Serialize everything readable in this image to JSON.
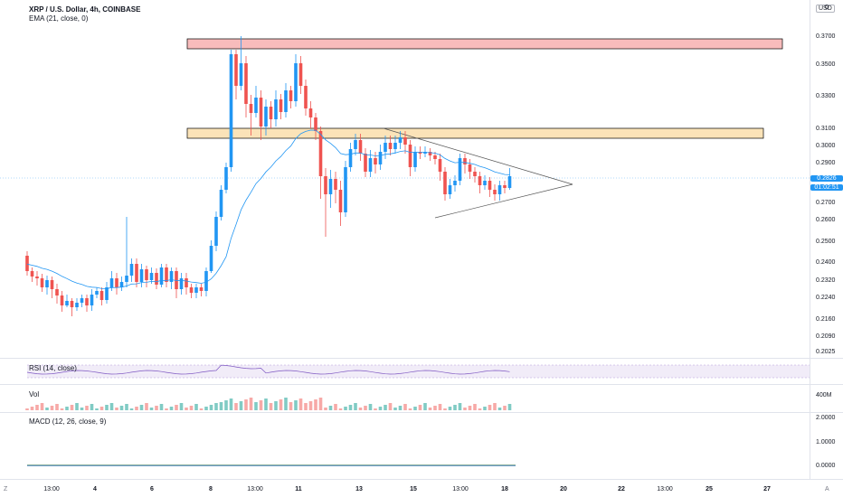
{
  "header": {
    "symbol": "XRP / U.S. Dollar, 4h, COINBASE",
    "indicator": "EMA (21, close, 0)"
  },
  "currency_badge": "USD",
  "price_axis": [
    "0.3700",
    "0.3500",
    "0.3300",
    "0.3100",
    "0.3000",
    "0.2900",
    "0.2800",
    "0.2700",
    "0.2600",
    "0.2500",
    "0.2400",
    "0.2320",
    "0.2240",
    "0.2160",
    "0.2090",
    "0.2025"
  ],
  "top_cut_label": "0",
  "current_price": {
    "value": "0.2826",
    "countdown": "01:02:51",
    "color": "#2196f3"
  },
  "rsi": {
    "label": "RSI (14, close)"
  },
  "volume": {
    "label": "Vol",
    "axis": "400M"
  },
  "macd": {
    "label": "MACD (12, 26, close, 9)",
    "axis": [
      "2.0000",
      "1.0000",
      "0.0000"
    ]
  },
  "time_axis": [
    {
      "label": "13:00",
      "bold": false
    },
    {
      "label": "4",
      "bold": true
    },
    {
      "label": "6",
      "bold": true
    },
    {
      "label": "8",
      "bold": true
    },
    {
      "label": "13:00",
      "bold": false
    },
    {
      "label": "11",
      "bold": true
    },
    {
      "label": "13",
      "bold": true
    },
    {
      "label": "15",
      "bold": true
    },
    {
      "label": "13:00",
      "bold": false
    },
    {
      "label": "18",
      "bold": true
    },
    {
      "label": "20",
      "bold": true
    },
    {
      "label": "22",
      "bold": true
    },
    {
      "label": "13:00",
      "bold": false
    },
    {
      "label": "25",
      "bold": true
    },
    {
      "label": "27",
      "bold": true
    }
  ],
  "corner_labels": {
    "left": "Z",
    "right": "A"
  },
  "colors": {
    "up": "#26a69a",
    "down": "#ef5350",
    "up_fill": "#2196f3",
    "ema": "#2196f3",
    "resistance_red": "#f8bcbc",
    "resistance_yellow": "#fbe3b8"
  }
}
